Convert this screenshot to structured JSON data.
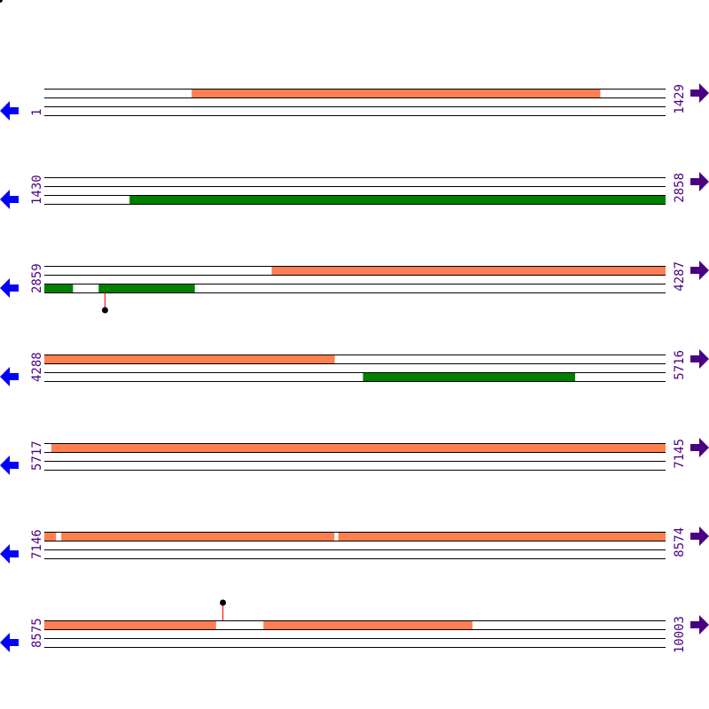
{
  "colors": {
    "orange": "#ff7f50",
    "green": "#008000",
    "line": "#000000",
    "label": "#4b0082",
    "left_arrow": "#0000ff",
    "right_arrow": "#4b0082",
    "marker_stem": "#ff0000",
    "marker_head": "#000000"
  },
  "icons": {
    "left": "arrow-left-icon",
    "right": "arrow-right-icon"
  },
  "rows": [
    {
      "start": "1",
      "end": "1429",
      "features": [
        {
          "frame": 0,
          "from": 340,
          "to": 1279,
          "color": "orange"
        }
      ],
      "markers": []
    },
    {
      "start": "1430",
      "end": "2858",
      "features": [
        {
          "frame": 2,
          "from": 1626,
          "to": 2858,
          "color": "green"
        }
      ],
      "markers": []
    },
    {
      "start": "2859",
      "end": "4287",
      "features": [
        {
          "frame": 0,
          "from": 3382,
          "to": 4287,
          "color": "orange"
        },
        {
          "frame": 2,
          "from": 2859,
          "to": 2924,
          "color": "green"
        },
        {
          "frame": 2,
          "from": 2984,
          "to": 3204,
          "color": "green"
        }
      ],
      "markers": [
        {
          "pos": 2998,
          "side": "below"
        }
      ]
    },
    {
      "start": "4288",
      "end": "5716",
      "features": [
        {
          "frame": 0,
          "from": 4288,
          "to": 4955,
          "color": "orange"
        },
        {
          "frame": 2,
          "from": 5021,
          "to": 5508,
          "color": "green"
        }
      ],
      "markers": []
    },
    {
      "start": "5717",
      "end": "7145",
      "features": [
        {
          "frame": 0,
          "from": 5733,
          "to": 7145,
          "color": "orange"
        }
      ],
      "markers": []
    },
    {
      "start": "7146",
      "end": "8574",
      "features": [
        {
          "frame": 0,
          "from": 7146,
          "to": 7172,
          "color": "orange"
        },
        {
          "frame": 0,
          "from": 7185,
          "to": 7812,
          "color": "orange"
        },
        {
          "frame": 0,
          "from": 7822,
          "to": 8574,
          "color": "orange"
        }
      ],
      "markers": []
    },
    {
      "start": "8575",
      "end": "10003",
      "features": [
        {
          "frame": 0,
          "from": 8575,
          "to": 8969,
          "color": "orange"
        },
        {
          "frame": 0,
          "from": 9079,
          "to": 9559,
          "color": "orange"
        }
      ],
      "markers": [
        {
          "pos": 8985,
          "side": "above"
        }
      ]
    }
  ]
}
